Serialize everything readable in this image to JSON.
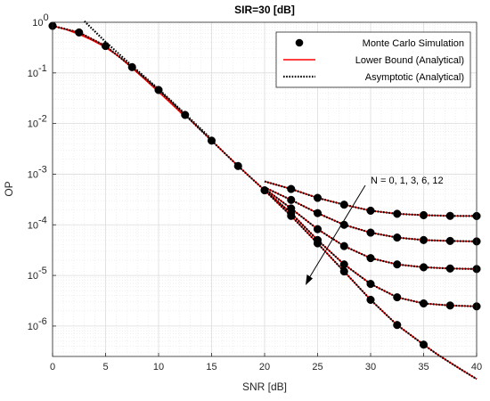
{
  "chart_data": {
    "type": "line",
    "title": "SIR=30 [dB]",
    "xlabel": "SNR [dB]",
    "ylabel": "OP",
    "xlim": [
      0,
      40
    ],
    "ylim_exponents": [
      -6.6,
      0
    ],
    "yscale": "log",
    "grid": true,
    "legend_position": "top-right",
    "x_ticks": [
      "0",
      "5",
      "10",
      "15",
      "20",
      "25",
      "30",
      "35",
      "40"
    ],
    "y_ticks": [
      {
        "base": "10",
        "exp": "0"
      },
      {
        "base": "10",
        "exp": "-1"
      },
      {
        "base": "10",
        "exp": "-2"
      },
      {
        "base": "10",
        "exp": "-3"
      },
      {
        "base": "10",
        "exp": "-4"
      },
      {
        "base": "10",
        "exp": "-5"
      },
      {
        "base": "10",
        "exp": "-6"
      }
    ],
    "legend": [
      {
        "label": "Monte Carlo Simulation",
        "style": "marker"
      },
      {
        "label": "Lower Bound (Analytical)",
        "style": "solid-red"
      },
      {
        "label": "Asymptotic (Analytical)",
        "style": "dotted-black"
      }
    ],
    "annotation": "N = 0, 1, 3, 6, 12",
    "colors": {
      "lower_bound": "#ff0000",
      "asymptotic": "#000000",
      "markers": "#000000",
      "grid": "#e6e6e6"
    },
    "series": [
      {
        "curve": "high_snr_common",
        "x": [
          0,
          2.5,
          5,
          7.5,
          10,
          12.5,
          15,
          17.5,
          20
        ],
        "y": [
          0.85,
          0.63,
          0.34,
          0.13,
          0.046,
          0.0148,
          0.0046,
          0.00145,
          0.00048
        ]
      },
      {
        "curve": "lower_bound_low_snr",
        "x": [
          0,
          1.25,
          2.5,
          3.75,
          5,
          6.25,
          7.5,
          8.75,
          10,
          11.25,
          12.5
        ],
        "y": [
          0.85,
          0.72,
          0.58,
          0.44,
          0.32,
          0.21,
          0.125,
          0.073,
          0.042,
          0.024,
          0.0135
        ]
      },
      {
        "curve": "asymptotic_low_snr",
        "x": [
          3,
          5,
          7.5,
          10,
          12.5,
          15
        ],
        "y": [
          1.05,
          0.41,
          0.138,
          0.048,
          0.0155,
          0.0049
        ]
      },
      {
        "curve": "N=0",
        "x": [
          20,
          22.5,
          25,
          27.5,
          30,
          32.5,
          35,
          37.5,
          40
        ],
        "y": [
          0.00072,
          0.00051,
          0.00034,
          0.00025,
          0.00019,
          0.000165,
          0.000155,
          0.00015,
          0.000149
        ]
      },
      {
        "curve": "N=1",
        "x": [
          20,
          22.5,
          25,
          27.5,
          30,
          32.5,
          35,
          37.5,
          40
        ],
        "y": [
          0.00055,
          0.00031,
          0.00017,
          0.0001,
          7e-05,
          5.6e-05,
          5e-05,
          4.8e-05,
          4.7e-05
        ]
      },
      {
        "curve": "N=3",
        "x": [
          20,
          22.5,
          25,
          27.5,
          30,
          32.5,
          35,
          37.5,
          40
        ],
        "y": [
          0.00052,
          0.00021,
          8.2e-05,
          3.8e-05,
          2.2e-05,
          1.65e-05,
          1.45e-05,
          1.37e-05,
          1.34e-05
        ]
      },
      {
        "curve": "N=6",
        "x": [
          20,
          22.5,
          25,
          27.5,
          30,
          32.5,
          35,
          37.5,
          40
        ],
        "y": [
          0.00049,
          0.00017,
          5e-05,
          1.65e-05,
          6.8e-06,
          3.7e-06,
          2.8e-06,
          2.55e-06,
          2.45e-06
        ]
      },
      {
        "curve": "N=12",
        "x": [
          20,
          22.5,
          25,
          27.5,
          30,
          32.5,
          35,
          37.5,
          40
        ],
        "y": [
          0.00048,
          0.00015,
          4.3e-05,
          1.2e-05,
          3.3e-06,
          1.05e-06,
          4.3e-07,
          null,
          null
        ]
      },
      {
        "curve": "N=12_tail",
        "x": [
          35,
          36.25,
          37.5,
          38.75,
          40
        ],
        "y": [
          4.3e-07,
          2.8e-07,
          1.9e-07,
          1.3e-07,
          9e-08
        ]
      }
    ]
  }
}
